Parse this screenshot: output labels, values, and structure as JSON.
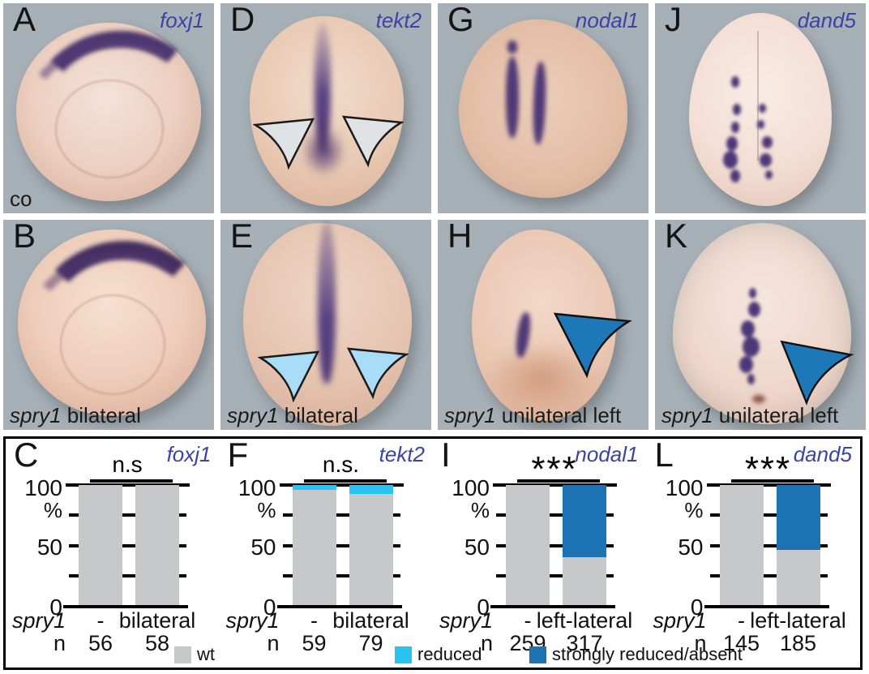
{
  "colors": {
    "panel_background": "#a7b0b7",
    "gene_label_blue": "#3c43a5",
    "stain_purple": "#503a76",
    "bar_wt_gray": "#c7c8ca",
    "bar_reduced_cyan": "#2bc3ef",
    "bar_strong_blue": "#1d72b4",
    "arrowhead_gray": "#dfe3e5",
    "arrowhead_lightblue": "#a9dcf6",
    "arrowhead_blue": "#1e78b8"
  },
  "photos": [
    {
      "letter": "A",
      "gene": "foxj1",
      "caption_italic": "",
      "caption_plain": "co"
    },
    {
      "letter": "D",
      "gene": "tekt2",
      "caption_italic": "",
      "caption_plain": ""
    },
    {
      "letter": "G",
      "gene": "nodal1",
      "caption_italic": "",
      "caption_plain": ""
    },
    {
      "letter": "J",
      "gene": "dand5",
      "caption_italic": "",
      "caption_plain": ""
    },
    {
      "letter": "B",
      "gene": "",
      "caption_italic": "spry1",
      "caption_plain": " bilateral"
    },
    {
      "letter": "E",
      "gene": "",
      "caption_italic": "spry1",
      "caption_plain": " bilateral"
    },
    {
      "letter": "H",
      "gene": "",
      "caption_italic": "spry1",
      "caption_plain": " unilateral left"
    },
    {
      "letter": "K",
      "gene": "",
      "caption_italic": "spry1",
      "caption_plain": " unilateral left"
    }
  ],
  "axis": {
    "t100": "100",
    "pct": "%",
    "t50": "50",
    "t0": "0"
  },
  "charts": [
    {
      "letter": "C",
      "gene": "foxj1",
      "sig": "n.s",
      "x_gene": "spry1",
      "n_label": "n",
      "bars": [
        {
          "label": "-",
          "n": "56",
          "wt": 100,
          "reduced": 0,
          "strong": 0
        },
        {
          "label": "bilateral",
          "n": "58",
          "wt": 100,
          "reduced": 0,
          "strong": 0
        }
      ]
    },
    {
      "letter": "F",
      "gene": "tekt2",
      "sig": "n.s.",
      "x_gene": "spry1",
      "n_label": "n",
      "bars": [
        {
          "label": "-",
          "n": "59",
          "wt": 96,
          "reduced": 4,
          "strong": 0
        },
        {
          "label": "bilateral",
          "n": "79",
          "wt": 93,
          "reduced": 7,
          "strong": 0
        }
      ]
    },
    {
      "letter": "I",
      "gene": "nodal1",
      "sig": "***",
      "x_gene": "spry1",
      "n_label": "n",
      "bars": [
        {
          "label": "-",
          "n": "259",
          "wt": 100,
          "reduced": 0,
          "strong": 0
        },
        {
          "label": "left-lateral",
          "n": "317",
          "wt": 41,
          "reduced": 0,
          "strong": 59
        }
      ]
    },
    {
      "letter": "L",
      "gene": "dand5",
      "sig": "***",
      "x_gene": "spry1",
      "n_label": "n",
      "bars": [
        {
          "label": "-",
          "n": "145",
          "wt": 100,
          "reduced": 0,
          "strong": 0
        },
        {
          "label": "left-lateral",
          "n": "185",
          "wt": 47,
          "reduced": 0,
          "strong": 53
        }
      ]
    }
  ],
  "legend": [
    {
      "label": "wt",
      "color": "#c7c8ca"
    },
    {
      "label": "reduced",
      "color": "#2bc3ef"
    },
    {
      "label": "strongly reduced/absent",
      "color": "#1d72b4"
    }
  ],
  "chart_data": [
    {
      "type": "bar",
      "stacked": true,
      "panel": "C",
      "title": "foxj1",
      "significance": "n.s",
      "x_axis_title": "spry1",
      "categories": [
        "-",
        "bilateral"
      ],
      "n": [
        56,
        58
      ],
      "series": [
        {
          "name": "wt",
          "values": [
            100,
            100
          ]
        },
        {
          "name": "reduced",
          "values": [
            0,
            0
          ]
        },
        {
          "name": "strongly reduced/absent",
          "values": [
            0,
            0
          ]
        }
      ],
      "ylabel": "%",
      "ylim": [
        0,
        100
      ],
      "yticks": [
        0,
        50,
        100
      ]
    },
    {
      "type": "bar",
      "stacked": true,
      "panel": "F",
      "title": "tekt2",
      "significance": "n.s.",
      "x_axis_title": "spry1",
      "categories": [
        "-",
        "bilateral"
      ],
      "n": [
        59,
        79
      ],
      "series": [
        {
          "name": "wt",
          "values": [
            96,
            93
          ]
        },
        {
          "name": "reduced",
          "values": [
            4,
            7
          ]
        },
        {
          "name": "strongly reduced/absent",
          "values": [
            0,
            0
          ]
        }
      ],
      "ylabel": "%",
      "ylim": [
        0,
        100
      ],
      "yticks": [
        0,
        50,
        100
      ]
    },
    {
      "type": "bar",
      "stacked": true,
      "panel": "I",
      "title": "nodal1",
      "significance": "***",
      "x_axis_title": "spry1",
      "categories": [
        "-",
        "left-lateral"
      ],
      "n": [
        259,
        317
      ],
      "series": [
        {
          "name": "wt",
          "values": [
            100,
            41
          ]
        },
        {
          "name": "reduced",
          "values": [
            0,
            0
          ]
        },
        {
          "name": "strongly reduced/absent",
          "values": [
            0,
            59
          ]
        }
      ],
      "ylabel": "%",
      "ylim": [
        0,
        100
      ],
      "yticks": [
        0,
        50,
        100
      ]
    },
    {
      "type": "bar",
      "stacked": true,
      "panel": "L",
      "title": "dand5",
      "significance": "***",
      "x_axis_title": "spry1",
      "categories": [
        "-",
        "left-lateral"
      ],
      "n": [
        145,
        185
      ],
      "series": [
        {
          "name": "wt",
          "values": [
            100,
            47
          ]
        },
        {
          "name": "reduced",
          "values": [
            0,
            0
          ]
        },
        {
          "name": "strongly reduced/absent",
          "values": [
            0,
            53
          ]
        }
      ],
      "ylabel": "%",
      "ylim": [
        0,
        100
      ],
      "yticks": [
        0,
        50,
        100
      ]
    }
  ]
}
